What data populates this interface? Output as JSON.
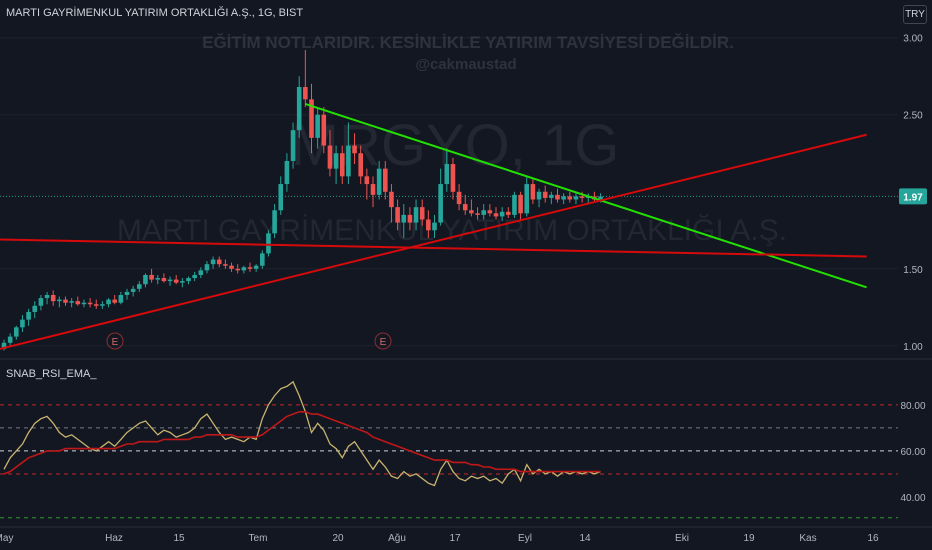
{
  "header": {
    "symbol_line": "MARTI GAYRİMENKUL YATIRIM ORTAKLIĞI A.Ş., 1G, BIST",
    "currency": "TRY"
  },
  "watermark": {
    "disclaimer": "EĞİTİM NOTLARIDIR. KESİNLİKLE YATIRIM TAVSİYESİ DEĞİLDİR.",
    "author": "@cakmaustad",
    "ticker": "MRGYO, 1G",
    "company": "MARTI GAYRİMENKUL YATIRIM ORTAKLIĞI A.Ş."
  },
  "indicator": {
    "name": "SNAB_RSI_EMA_"
  },
  "colors": {
    "background": "#131722",
    "up": "#26a69a",
    "down": "#ef5350",
    "trend_green": "#22e000",
    "trend_red": "#d60a0a",
    "rsi": "#c8b46e",
    "rsi_ema": "#c01818"
  },
  "events": [
    "E",
    "E"
  ],
  "chart_data": [
    {
      "type": "candlestick",
      "title": "MARTI GAYRİMENKUL YATIRIM ORTAKLIĞI A.Ş., 1G, BIST",
      "y_ticks": [
        "3.00",
        "2.50",
        "1.50",
        "1.00"
      ],
      "ylim": [
        0.96,
        3.05
      ],
      "last_price": "1.97",
      "x_ticks": [
        "May",
        "Haz",
        "15",
        "Tem",
        "20",
        "Ağu",
        "17",
        "Eyl",
        "14",
        "Eki",
        "19",
        "Kas",
        "16"
      ],
      "candles": [
        [
          0.98,
          1.04,
          0.97,
          1.02
        ],
        [
          1.02,
          1.08,
          1.0,
          1.06
        ],
        [
          1.06,
          1.13,
          1.04,
          1.12
        ],
        [
          1.12,
          1.2,
          1.09,
          1.17
        ],
        [
          1.17,
          1.24,
          1.13,
          1.22
        ],
        [
          1.22,
          1.29,
          1.18,
          1.26
        ],
        [
          1.26,
          1.33,
          1.23,
          1.31
        ],
        [
          1.31,
          1.35,
          1.27,
          1.33
        ],
        [
          1.33,
          1.36,
          1.26,
          1.29
        ],
        [
          1.29,
          1.32,
          1.25,
          1.3
        ],
        [
          1.3,
          1.32,
          1.26,
          1.28
        ],
        [
          1.28,
          1.31,
          1.25,
          1.29
        ],
        [
          1.29,
          1.32,
          1.26,
          1.27
        ],
        [
          1.27,
          1.3,
          1.25,
          1.28
        ],
        [
          1.28,
          1.31,
          1.25,
          1.27
        ],
        [
          1.27,
          1.3,
          1.24,
          1.26
        ],
        [
          1.26,
          1.29,
          1.24,
          1.27
        ],
        [
          1.27,
          1.31,
          1.25,
          1.3
        ],
        [
          1.3,
          1.33,
          1.27,
          1.28
        ],
        [
          1.28,
          1.35,
          1.27,
          1.33
        ],
        [
          1.33,
          1.37,
          1.3,
          1.35
        ],
        [
          1.35,
          1.39,
          1.32,
          1.37
        ],
        [
          1.37,
          1.42,
          1.35,
          1.4
        ],
        [
          1.4,
          1.47,
          1.38,
          1.46
        ],
        [
          1.46,
          1.5,
          1.41,
          1.43
        ],
        [
          1.43,
          1.46,
          1.4,
          1.44
        ],
        [
          1.44,
          1.47,
          1.41,
          1.42
        ],
        [
          1.42,
          1.45,
          1.39,
          1.43
        ],
        [
          1.43,
          1.46,
          1.4,
          1.41
        ],
        [
          1.41,
          1.44,
          1.38,
          1.42
        ],
        [
          1.42,
          1.45,
          1.4,
          1.44
        ],
        [
          1.44,
          1.48,
          1.42,
          1.46
        ],
        [
          1.46,
          1.51,
          1.44,
          1.49
        ],
        [
          1.49,
          1.55,
          1.47,
          1.53
        ],
        [
          1.53,
          1.58,
          1.5,
          1.56
        ],
        [
          1.56,
          1.58,
          1.51,
          1.53
        ],
        [
          1.53,
          1.56,
          1.5,
          1.52
        ],
        [
          1.52,
          1.54,
          1.48,
          1.5
        ],
        [
          1.5,
          1.53,
          1.47,
          1.49
        ],
        [
          1.49,
          1.52,
          1.47,
          1.51
        ],
        [
          1.51,
          1.54,
          1.48,
          1.5
        ],
        [
          1.5,
          1.53,
          1.48,
          1.52
        ],
        [
          1.52,
          1.62,
          1.5,
          1.6
        ],
        [
          1.6,
          1.75,
          1.58,
          1.73
        ],
        [
          1.73,
          1.92,
          1.7,
          1.88
        ],
        [
          1.88,
          2.1,
          1.85,
          2.05
        ],
        [
          2.05,
          2.25,
          2.0,
          2.2
        ],
        [
          2.2,
          2.45,
          2.15,
          2.4
        ],
        [
          2.4,
          2.75,
          2.35,
          2.68
        ],
        [
          2.68,
          2.92,
          2.55,
          2.6
        ],
        [
          2.6,
          2.7,
          2.25,
          2.35
        ],
        [
          2.35,
          2.55,
          2.28,
          2.5
        ],
        [
          2.5,
          2.55,
          2.25,
          2.3
        ],
        [
          2.3,
          2.4,
          2.1,
          2.15
        ],
        [
          2.15,
          2.3,
          2.05,
          2.25
        ],
        [
          2.25,
          2.3,
          2.05,
          2.1
        ],
        [
          2.1,
          2.45,
          2.05,
          2.3
        ],
        [
          2.3,
          2.38,
          2.18,
          2.25
        ],
        [
          2.25,
          2.3,
          2.05,
          2.1
        ],
        [
          2.1,
          2.15,
          1.95,
          2.05
        ],
        [
          2.05,
          2.1,
          1.9,
          1.98
        ],
        [
          1.98,
          2.2,
          1.95,
          2.15
        ],
        [
          2.15,
          2.2,
          1.95,
          2.0
        ],
        [
          2.0,
          2.05,
          1.8,
          1.9
        ],
        [
          1.9,
          1.95,
          1.75,
          1.8
        ],
        [
          1.8,
          1.92,
          1.7,
          1.85
        ],
        [
          1.85,
          1.9,
          1.75,
          1.8
        ],
        [
          1.8,
          1.95,
          1.75,
          1.9
        ],
        [
          1.9,
          1.95,
          1.78,
          1.82
        ],
        [
          1.82,
          1.88,
          1.7,
          1.75
        ],
        [
          1.75,
          1.85,
          1.7,
          1.8
        ],
        [
          1.8,
          2.15,
          1.78,
          2.05
        ],
        [
          2.05,
          2.28,
          2.0,
          2.18
        ],
        [
          2.18,
          2.22,
          1.95,
          2.0
        ],
        [
          2.0,
          2.05,
          1.88,
          1.92
        ],
        [
          1.92,
          1.98,
          1.85,
          1.88
        ],
        [
          1.88,
          1.95,
          1.84,
          1.86
        ],
        [
          1.86,
          1.9,
          1.82,
          1.85
        ],
        [
          1.85,
          1.92,
          1.82,
          1.88
        ],
        [
          1.88,
          1.92,
          1.84,
          1.86
        ],
        [
          1.86,
          1.9,
          1.82,
          1.84
        ],
        [
          1.84,
          1.9,
          1.81,
          1.87
        ],
        [
          1.87,
          1.9,
          1.83,
          1.85
        ],
        [
          1.85,
          2.0,
          1.83,
          1.98
        ],
        [
          1.98,
          2.0,
          1.82,
          1.86
        ],
        [
          1.86,
          2.1,
          1.84,
          2.05
        ],
        [
          2.05,
          2.08,
          1.92,
          1.95
        ],
        [
          1.95,
          2.02,
          1.9,
          2.0
        ],
        [
          2.0,
          2.04,
          1.93,
          1.96
        ],
        [
          1.96,
          2.0,
          1.92,
          1.98
        ],
        [
          1.98,
          2.02,
          1.93,
          1.95
        ],
        [
          1.95,
          1.99,
          1.92,
          1.97
        ],
        [
          1.97,
          2.0,
          1.93,
          1.95
        ],
        [
          1.95,
          1.99,
          1.92,
          1.97
        ],
        [
          1.97,
          2.0,
          1.93,
          1.96
        ],
        [
          1.96,
          1.99,
          1.92,
          1.97
        ],
        [
          1.97,
          2.0,
          1.94,
          1.95
        ],
        [
          1.95,
          1.99,
          1.93,
          1.97
        ]
      ],
      "trendlines": [
        {
          "color": "green",
          "from": [
            0.34,
            2.57
          ],
          "to": [
            0.965,
            1.38
          ]
        },
        {
          "color": "red",
          "from": [
            0.0,
            0.98
          ],
          "to": [
            0.965,
            2.37
          ]
        },
        {
          "color": "red",
          "from": [
            0.0,
            1.69
          ],
          "to": [
            0.965,
            1.58
          ]
        }
      ]
    },
    {
      "type": "line",
      "title": "SNAB_RSI_EMA_",
      "y_ticks": [
        "80.00",
        "60.00",
        "40.00"
      ],
      "ylim": [
        30,
        96
      ],
      "hlines": [
        {
          "value": 80,
          "style": "dashed",
          "color": "red"
        },
        {
          "value": 70,
          "style": "dashed",
          "color": "gray"
        },
        {
          "value": 60,
          "style": "dashed",
          "color": "white"
        },
        {
          "value": 50,
          "style": "dashed",
          "color": "red"
        },
        {
          "value": 31,
          "style": "dashed",
          "color": "green"
        }
      ],
      "series": [
        {
          "color": "rsi",
          "values": [
            52,
            57,
            60,
            63,
            68,
            72,
            74,
            75,
            72,
            68,
            66,
            67,
            65,
            63,
            61,
            60,
            62,
            64,
            62,
            65,
            68,
            70,
            72,
            73,
            70,
            67,
            69,
            68,
            66,
            67,
            68,
            70,
            74,
            76,
            72,
            68,
            65,
            66,
            65,
            64,
            66,
            65,
            74,
            80,
            84,
            87,
            88,
            90,
            84,
            77,
            68,
            72,
            69,
            63,
            61,
            57,
            62,
            64,
            60,
            56,
            52,
            56,
            53,
            49,
            48,
            51,
            49,
            50,
            48,
            46,
            45,
            52,
            56,
            51,
            48,
            47,
            49,
            48,
            49,
            47,
            48,
            46,
            50,
            52,
            47,
            54,
            50,
            52,
            50,
            51,
            49,
            51,
            50,
            51,
            50,
            51,
            50,
            51
          ]
        },
        {
          "color": "rsi_ema",
          "values": [
            50,
            51,
            53,
            55,
            57,
            58,
            59,
            60,
            60,
            60,
            61,
            61,
            61,
            61,
            61,
            61,
            61,
            61,
            61,
            62,
            63,
            63,
            64,
            64,
            64,
            64,
            65,
            65,
            65,
            65,
            65,
            66,
            66,
            67,
            67,
            67,
            67,
            67,
            66,
            66,
            66,
            66,
            67,
            69,
            71,
            73,
            75,
            76,
            77,
            77,
            76,
            76,
            75,
            74,
            73,
            72,
            71,
            70,
            69,
            68,
            66,
            65,
            64,
            63,
            62,
            61,
            60,
            59,
            58,
            57,
            56,
            56,
            56,
            55,
            55,
            55,
            54,
            54,
            53,
            53,
            52,
            52,
            52,
            52,
            51,
            51,
            51,
            51,
            51,
            51,
            51,
            51,
            51,
            51,
            51,
            51,
            51,
            51
          ]
        }
      ]
    }
  ]
}
